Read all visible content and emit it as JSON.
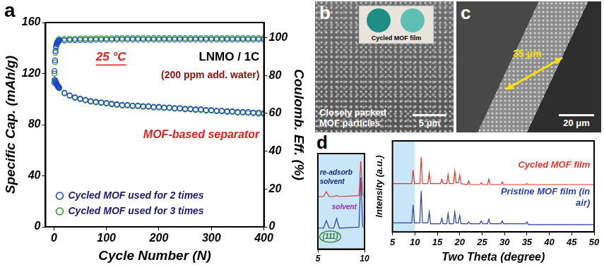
{
  "chart_data": [
    {
      "letter": "a",
      "type": "scatter",
      "marker": "circle",
      "x_label": "Cycle Number (N)",
      "y_label": "Specific Cap. (mAh/g)",
      "y2_label": "Coulomb. Eff. (%)",
      "annotations": [
        {
          "text": "25 °C",
          "color": "#e0201b"
        },
        {
          "text": "LNMO / 1C",
          "color": "#000000"
        },
        {
          "text": "(200 ppm add. water)",
          "color": "#8b1010"
        },
        {
          "text": "MOF-based separator",
          "color": "#e0201b"
        }
      ],
      "xlim": [
        -16,
        400
      ],
      "xticks": [
        0,
        100,
        200,
        300,
        400
      ],
      "ylim": [
        0,
        160
      ],
      "yticks": [
        0,
        40,
        80,
        120,
        160
      ],
      "y2lim": [
        0,
        108
      ],
      "y2ticks": [
        0,
        20,
        40,
        60,
        80,
        100
      ],
      "grid": false,
      "legend": "lower left",
      "x": [
        1,
        2,
        3,
        4,
        5,
        6,
        7,
        8,
        9,
        10,
        20,
        30,
        40,
        50,
        60,
        70,
        80,
        90,
        100,
        110,
        120,
        130,
        140,
        150,
        160,
        170,
        180,
        190,
        200,
        210,
        220,
        230,
        240,
        250,
        260,
        270,
        280,
        290,
        300,
        310,
        320,
        330,
        340,
        350,
        360,
        370,
        380,
        390,
        400
      ],
      "series": [
        {
          "name": "Cycled MOF used for 2 times",
          "color": "#1e40d8",
          "values": [
            122,
            115,
            114,
            113,
            112,
            111,
            110.5,
            110,
            109.5,
            109,
            105,
            103,
            101.5,
            100.5,
            99.5,
            98.5,
            98,
            97.5,
            97,
            96.5,
            96,
            95.5,
            95.5,
            95,
            95,
            94.5,
            94.5,
            94,
            94,
            93.5,
            93.5,
            93,
            93,
            92.5,
            92.5,
            92,
            92,
            91.5,
            91.5,
            91,
            91,
            90.5,
            90.5,
            90,
            90,
            90,
            89.5,
            89.5,
            89
          ]
        },
        {
          "name": "Cycled MOF used for 3 times",
          "color": "#2ca02c",
          "values": [
            115,
            114,
            113,
            112.5,
            111.5,
            111,
            110,
            109.5,
            109,
            108.5,
            104.5,
            102.5,
            101,
            100,
            99,
            98,
            97.5,
            97,
            96.5,
            96,
            95.5,
            95,
            95,
            94.5,
            94.5,
            94,
            94,
            93.5,
            93.5,
            93,
            93,
            92.5,
            92.5,
            92,
            92,
            91.5,
            91.5,
            91,
            91,
            90.5,
            90.5,
            90,
            90,
            89.5,
            89.5,
            89,
            89,
            88.5,
            88.5
          ]
        },
        {
          "name": "Cycled MOF used for 2 times",
          "color": "#1e40d8",
          "axis": "y2",
          "values": [
            76,
            88,
            93,
            95.5,
            96.5,
            97,
            97.5,
            98,
            98,
            98.5,
            98.6,
            98.7,
            98.7,
            98.8,
            98.8,
            98.8,
            98.9,
            98.9,
            98.9,
            98.9,
            99,
            99,
            99,
            99,
            99,
            99,
            99,
            99,
            99,
            99,
            99,
            99,
            99,
            99,
            99,
            99,
            99,
            99,
            99,
            99,
            99,
            99,
            99,
            99,
            99,
            99,
            99,
            99,
            99
          ]
        },
        {
          "name": "Cycled MOF used for 3 times",
          "color": "#2ca02c",
          "axis": "y2",
          "values": [
            81,
            87,
            92,
            95,
            96.5,
            97.5,
            98,
            98.5,
            99,
            99.2,
            99.4,
            99.5,
            99.5,
            99.6,
            99.6,
            99.6,
            99.7,
            99.7,
            99.7,
            99.7,
            99.8,
            99.8,
            99.8,
            99.8,
            99.8,
            99.8,
            99.8,
            99.8,
            99.8,
            99.8,
            99.8,
            99.8,
            99.8,
            99.8,
            99.8,
            99.8,
            99.8,
            99.8,
            99.8,
            99.8,
            99.8,
            99.8,
            99.8,
            99.8,
            99.8,
            99.8,
            99.8,
            99.8,
            99.8
          ]
        }
      ]
    },
    {
      "type": "line",
      "annotations": [
        {
          "text": "re-adsorb solvent",
          "color": "#1a237e"
        },
        {
          "text": "solvent",
          "color": "#9c27b0"
        },
        {
          "text": "(111)",
          "color": "#2e7d32"
        }
      ],
      "x": [
        5,
        5.6,
        5.9,
        6.2,
        6.7,
        7.0,
        7.3,
        9.4,
        9.6,
        9.8,
        10
      ],
      "xlim": [
        5,
        10
      ],
      "xticks": [
        5,
        10
      ],
      "ylim": [
        0,
        100
      ],
      "grid": false,
      "tick_labels": "x",
      "series": [
        {
          "color": "#e8332a",
          "values": [
            55,
            55,
            60,
            55,
            55,
            56,
            55,
            56,
            92,
            57,
            55
          ]
        },
        {
          "color": "#2a3cb0",
          "values": [
            22,
            22,
            30,
            22,
            22,
            32,
            22,
            23,
            75,
            24,
            22
          ]
        }
      ]
    },
    {
      "letter": "d",
      "type": "line",
      "x_label": "Two Theta (degree)",
      "y_label": "Intensity (a.u.)",
      "x": [
        5,
        9.3,
        9.6,
        9.9,
        11.1,
        11.4,
        11.7,
        12.9,
        13.2,
        13.5,
        15.7,
        16.0,
        16.3,
        17.1,
        17.4,
        17.7,
        18.6,
        18.9,
        19.2,
        19.7,
        20.0,
        20.3,
        21.7,
        22.0,
        22.3,
        24.5,
        24.8,
        25.1,
        26.2,
        26.5,
        26.8,
        29.2,
        29.5,
        29.8,
        34.7,
        35.0,
        35.3,
        50
      ],
      "xlim": [
        5,
        50
      ],
      "xticks": [
        5,
        10,
        15,
        20,
        25,
        30,
        35,
        40,
        45,
        50
      ],
      "ylim": [
        0,
        100
      ],
      "grid": false,
      "tick_labels": "x",
      "series": [
        {
          "name": "Cycled MOF film",
          "color": "#e8332a",
          "values": [
            53,
            53,
            68,
            53,
            53,
            82,
            53,
            53,
            65,
            53,
            53,
            58,
            53,
            53,
            63,
            53,
            53,
            67,
            54,
            54,
            62,
            53,
            52,
            56,
            52,
            52,
            54,
            52,
            52,
            58,
            52,
            52,
            55,
            52,
            52,
            53,
            52,
            52
          ]
        },
        {
          "name": "Pristine MOF film (in air)",
          "color": "#2a3cb0",
          "values": [
            10,
            10,
            30,
            10,
            10,
            45,
            10,
            10,
            22,
            9,
            9,
            15,
            9,
            9,
            20,
            9,
            9,
            22,
            10,
            10,
            18,
            9,
            9,
            11,
            9,
            9,
            12,
            9,
            9,
            14,
            9,
            9,
            12,
            9,
            9,
            11,
            8,
            8
          ]
        }
      ]
    }
  ],
  "images": [
    {
      "letter": "b",
      "photo_label": "Cycled MOF film",
      "caption": "Closely packed MOF particles",
      "scale_bar": "5 μm"
    },
    {
      "letter": "c",
      "thickness": "35 μm",
      "scale_bar": "20 μm"
    }
  ]
}
